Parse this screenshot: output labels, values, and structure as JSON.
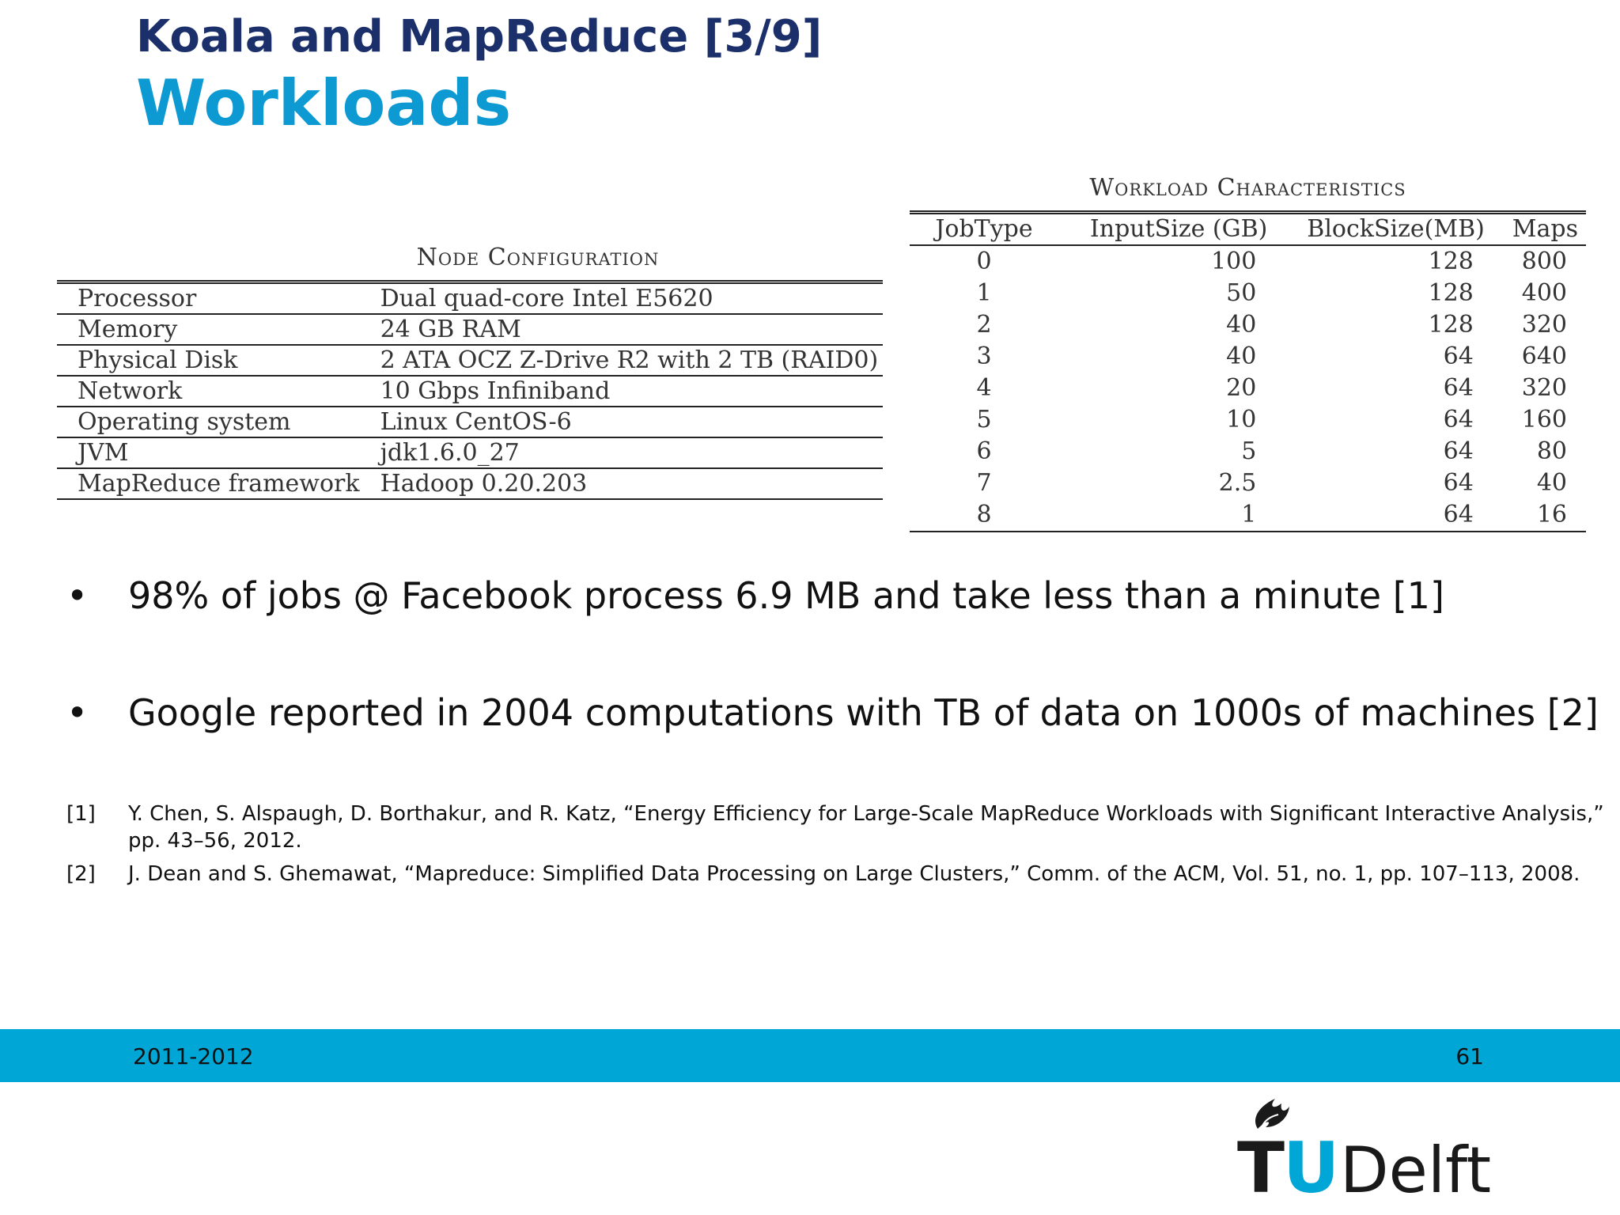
{
  "header": {
    "title": "Koala and MapReduce [3/9]",
    "subtitle": "Workloads"
  },
  "node_config": {
    "caption": "Node Configuration",
    "rows": [
      {
        "key": "Processor",
        "value": "Dual quad-core Intel E5620"
      },
      {
        "key": "Memory",
        "value": "24 GB RAM"
      },
      {
        "key": "Physical Disk",
        "value": "2 ATA OCZ Z-Drive R2 with 2 TB (RAID0)"
      },
      {
        "key": "Network",
        "value": "10 Gbps Infiniband"
      },
      {
        "key": "Operating system",
        "value": "Linux CentOS-6"
      },
      {
        "key": "JVM",
        "value": "jdk1.6.0_27"
      },
      {
        "key": "MapReduce framework",
        "value": "Hadoop 0.20.203"
      }
    ]
  },
  "workload": {
    "caption": "Workload Characteristics",
    "headers": [
      "JobType",
      "InputSize (GB)",
      "BlockSize(MB)",
      "Maps"
    ],
    "rows": [
      [
        "0",
        "100",
        "128",
        "800"
      ],
      [
        "1",
        "50",
        "128",
        "400"
      ],
      [
        "2",
        "40",
        "128",
        "320"
      ],
      [
        "3",
        "40",
        "64",
        "640"
      ],
      [
        "4",
        "20",
        "64",
        "320"
      ],
      [
        "5",
        "10",
        "64",
        "160"
      ],
      [
        "6",
        "5",
        "64",
        "80"
      ],
      [
        "7",
        "2.5",
        "64",
        "40"
      ],
      [
        "8",
        "1",
        "64",
        "16"
      ]
    ]
  },
  "bullets": [
    "98% of jobs @ Facebook process 6.9 MB and take less than a minute [1]",
    "Google reported in 2004 computations with TB of data on 1000s of machines [2]"
  ],
  "bullet_symbol": "•",
  "references": [
    {
      "num": "[1]",
      "text": "Y. Chen, S. Alspaugh, D. Borthakur, and R. Katz, “Energy Efficiency for Large-Scale MapReduce Workloads with Significant Interactive Analysis,” pp. 43–56, 2012."
    },
    {
      "num": "[2]",
      "text": "J. Dean and S. Ghemawat, “Mapreduce: Simplified Data Processing on Large Clusters,” Comm. of the ACM, Vol. 51, no. 1, pp. 107–113, 2008."
    }
  ],
  "footer": {
    "year": "2011-2012",
    "page": "61",
    "bar_color": "#00a6d6"
  },
  "logo": {
    "text_t": "T",
    "text_u": "U",
    "text_rest": "Delft",
    "icon": "flame-icon"
  },
  "colors": {
    "title": "#1b2f6b",
    "subtitle": "#0d9ad3"
  }
}
